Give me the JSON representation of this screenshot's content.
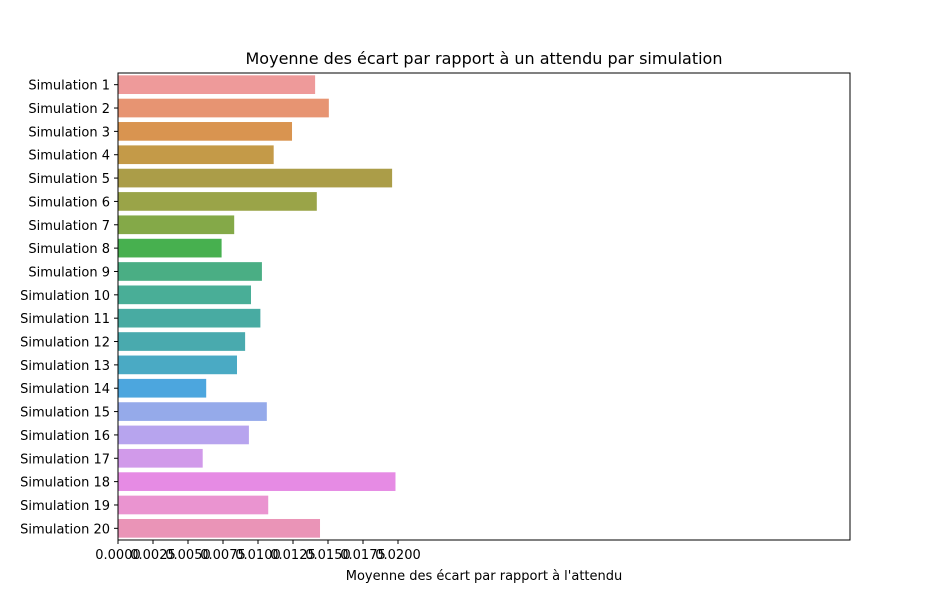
{
  "chart_data": {
    "type": "bar",
    "orientation": "horizontal",
    "title": "Moyenne des écart par rapport à un attendu par simulation",
    "xlabel": "Moyenne des écart par rapport à l'attendu",
    "ylabel": "",
    "xlim": [
      0,
      0.0208
    ],
    "x_ticks": [
      "0.0000",
      "0.0025",
      "0.0050",
      "0.0075",
      "0.0100",
      "0.0125",
      "0.0150",
      "0.0175",
      "0.0200"
    ],
    "x_tick_values": [
      0,
      0.0025,
      0.005,
      0.0075,
      0.01,
      0.0125,
      0.015,
      0.0175,
      0.02
    ],
    "grid": false,
    "legend": "none",
    "categories": [
      "Simulation 1",
      "Simulation 2",
      "Simulation 3",
      "Simulation 4",
      "Simulation 5",
      "Simulation 6",
      "Simulation 7",
      "Simulation 8",
      "Simulation 9",
      "Simulation 10",
      "Simulation 11",
      "Simulation 12",
      "Simulation 13",
      "Simulation 14",
      "Simulation 15",
      "Simulation 16",
      "Simulation 17",
      "Simulation 18",
      "Simulation 19",
      "Simulation 20"
    ],
    "values": [
      0.01408,
      0.01506,
      0.01243,
      0.01112,
      0.01958,
      0.0142,
      0.0083,
      0.0074,
      0.01028,
      0.0095,
      0.01017,
      0.00908,
      0.0085,
      0.0063,
      0.01063,
      0.00935,
      0.00605,
      0.01982,
      0.01073,
      0.01443
    ],
    "colors": [
      "#ee9a9a",
      "#e79472",
      "#d99450",
      "#c49a48",
      "#ab9d48",
      "#9aa448",
      "#84a948",
      "#47b04f",
      "#4aae84",
      "#49ae97",
      "#48aba2",
      "#49aaae",
      "#4aaac4",
      "#4ca6de",
      "#95aaea",
      "#b7a4ee",
      "#d19aea",
      "#e68be4",
      "#ea94d0",
      "#ea94b7"
    ]
  }
}
